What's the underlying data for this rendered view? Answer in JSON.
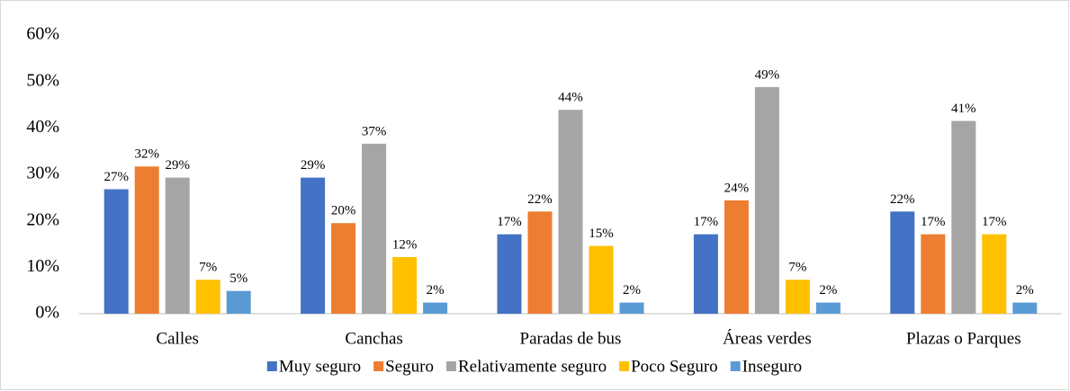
{
  "chart_data": {
    "type": "bar",
    "categories": [
      "Calles",
      "Canchas",
      "Paradas de bus",
      "Áreas verdes",
      "Plazas o Parques"
    ],
    "series": [
      {
        "name": "Muy seguro",
        "color": "#4472c4",
        "values": [
          26.8,
          29.3,
          17.1,
          17.1,
          22.0
        ],
        "value_labels": [
          "27%",
          "29%",
          "17%",
          "17%",
          "22%"
        ]
      },
      {
        "name": "Seguro",
        "color": "#ed7d31",
        "values": [
          31.7,
          19.5,
          22.0,
          24.4,
          17.1
        ],
        "value_labels": [
          "32%",
          "20%",
          "22%",
          "24%",
          "17%"
        ]
      },
      {
        "name": "Relativamente seguro",
        "color": "#a5a5a5",
        "values": [
          29.3,
          36.6,
          43.9,
          48.8,
          41.5
        ],
        "value_labels": [
          "29%",
          "37%",
          "44%",
          "49%",
          "41%"
        ]
      },
      {
        "name": "Poco Seguro",
        "color": "#ffc000",
        "values": [
          7.3,
          12.2,
          14.6,
          7.3,
          17.1
        ],
        "value_labels": [
          "7%",
          "12%",
          "15%",
          "7%",
          "17%"
        ]
      },
      {
        "name": "Inseguro",
        "color": "#5b9bd5",
        "values": [
          4.9,
          2.4,
          2.4,
          2.4,
          2.4
        ],
        "value_labels": [
          "5%",
          "2%",
          "2%",
          "2%",
          "2%"
        ]
      }
    ],
    "ylim": [
      0,
      60
    ],
    "yticks": [
      {
        "value": 0,
        "label": "0%"
      },
      {
        "value": 10,
        "label": "10%"
      },
      {
        "value": 20,
        "label": "20%"
      },
      {
        "value": 30,
        "label": "30%"
      },
      {
        "value": 40,
        "label": "40%"
      },
      {
        "value": 50,
        "label": "50%"
      },
      {
        "value": 60,
        "label": "60%"
      }
    ],
    "grid": false,
    "legend": "bottom"
  }
}
